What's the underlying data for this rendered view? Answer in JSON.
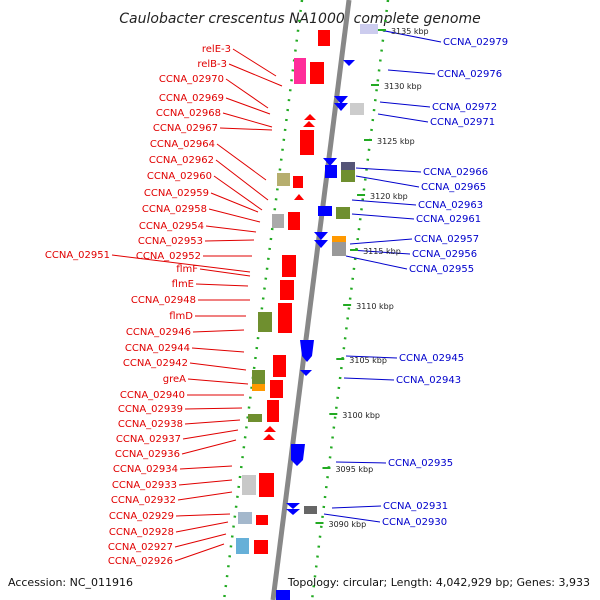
{
  "title": "Caulobacter crescentus NA1000, complete genome",
  "footer": {
    "accession": "Accession: NC_011916",
    "topology": "Topology: circular; Length: 4,042,929 bp; Genes: 3,933"
  },
  "colors": {
    "forward": "#ff0000",
    "reverse": "#0000ff",
    "backbone": "#888888",
    "dots": "#22aa22",
    "left_label": "#e00000",
    "right_label": "#0000cc"
  },
  "ticks": [
    "3090 kbp",
    "3095 kbp",
    "3100 kbp",
    "3105 kbp",
    "3110 kbp",
    "3115 kbp",
    "3120 kbp",
    "3125 kbp",
    "3130 kbp",
    "3135 kbp"
  ],
  "left_genes": [
    "relE-3",
    "relB-3",
    "CCNA_02970",
    "CCNA_02969",
    "CCNA_02968",
    "CCNA_02967",
    "CCNA_02964",
    "CCNA_02962",
    "CCNA_02960",
    "CCNA_02959",
    "CCNA_02958",
    "CCNA_02954",
    "CCNA_02953",
    "CCNA_02951",
    "CCNA_02952",
    "flmF",
    "flmE",
    "CCNA_02948",
    "flmD",
    "CCNA_02946",
    "CCNA_02944",
    "CCNA_02942",
    "greA",
    "CCNA_02940",
    "CCNA_02939",
    "CCNA_02938",
    "CCNA_02937",
    "CCNA_02936",
    "CCNA_02934",
    "CCNA_02933",
    "CCNA_02932",
    "CCNA_02929",
    "CCNA_02928",
    "CCNA_02927",
    "CCNA_02926"
  ],
  "right_genes": [
    "CCNA_02979",
    "CCNA_02976",
    "CCNA_02972",
    "CCNA_02971",
    "CCNA_02966",
    "CCNA_02965",
    "CCNA_02963",
    "CCNA_02961",
    "CCNA_02957",
    "CCNA_02956",
    "CCNA_02955",
    "CCNA_02945",
    "CCNA_02943",
    "CCNA_02935",
    "CCNA_02931",
    "CCNA_02930"
  ]
}
